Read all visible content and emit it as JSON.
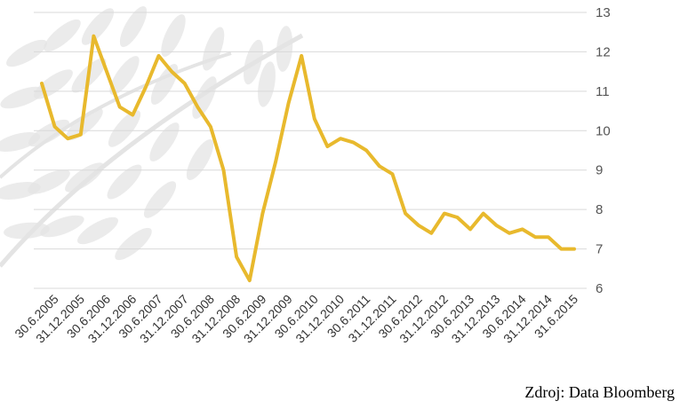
{
  "chart_data": {
    "type": "line",
    "title": "",
    "xlabel": "",
    "ylabel": "",
    "ylim": [
      6,
      13
    ],
    "yticks": [
      6,
      7,
      8,
      9,
      10,
      11,
      12,
      13
    ],
    "grid": true,
    "legend": "none",
    "colors": {
      "line": "#E8B92D",
      "grid": "#d9d9d9",
      "watermark": "#e4e4e4"
    },
    "x_tick_labels": [
      "30.6.2005",
      "31.12.2005",
      "30.6.2006",
      "31.12.2006",
      "30.6.2007",
      "31.12.2007",
      "30.6.2008",
      "31.12.2008",
      "30.6.2009",
      "31.12.2009",
      "30.6.2010",
      "31.12.2010",
      "30.6.2011",
      "31.12.2011",
      "30.6.2012",
      "31.12.2012",
      "30.6.2013",
      "31.12.2013",
      "30.6.2014",
      "31.12.2014",
      "31.6.2015"
    ],
    "x": [
      "31.3.2005",
      "30.6.2005",
      "30.9.2005",
      "31.12.2005",
      "31.3.2006",
      "30.6.2006",
      "30.9.2006",
      "31.12.2006",
      "31.3.2007",
      "30.6.2007",
      "30.9.2007",
      "31.12.2007",
      "31.3.2008",
      "30.6.2008",
      "30.9.2008",
      "31.12.2008",
      "31.3.2009",
      "30.6.2009",
      "30.9.2009",
      "31.12.2009",
      "31.3.2010",
      "30.6.2010",
      "30.9.2010",
      "31.12.2010",
      "31.3.2011",
      "30.6.2011",
      "30.9.2011",
      "31.12.2011",
      "31.3.2012",
      "30.6.2012",
      "30.9.2012",
      "31.12.2012",
      "31.3.2013",
      "30.6.2013",
      "30.9.2013",
      "31.12.2013",
      "31.3.2014",
      "30.6.2014",
      "30.9.2014",
      "31.12.2014",
      "31.3.2015",
      "30.6.2015"
    ],
    "series": [
      {
        "values": [
          11.2,
          10.1,
          9.8,
          9.9,
          12.4,
          11.5,
          10.6,
          10.4,
          11.1,
          11.9,
          11.5,
          11.2,
          10.6,
          10.1,
          9.0,
          6.8,
          6.2,
          7.9,
          9.2,
          10.7,
          11.9,
          10.3,
          9.6,
          9.8,
          9.7,
          9.5,
          9.1,
          8.9,
          7.9,
          7.6,
          7.4,
          7.9,
          7.8,
          7.5,
          7.9,
          7.6,
          7.4,
          7.5,
          7.3,
          7.3,
          7.0,
          7.0
        ]
      }
    ]
  },
  "source": "Zdroj: Data Bloomberg"
}
